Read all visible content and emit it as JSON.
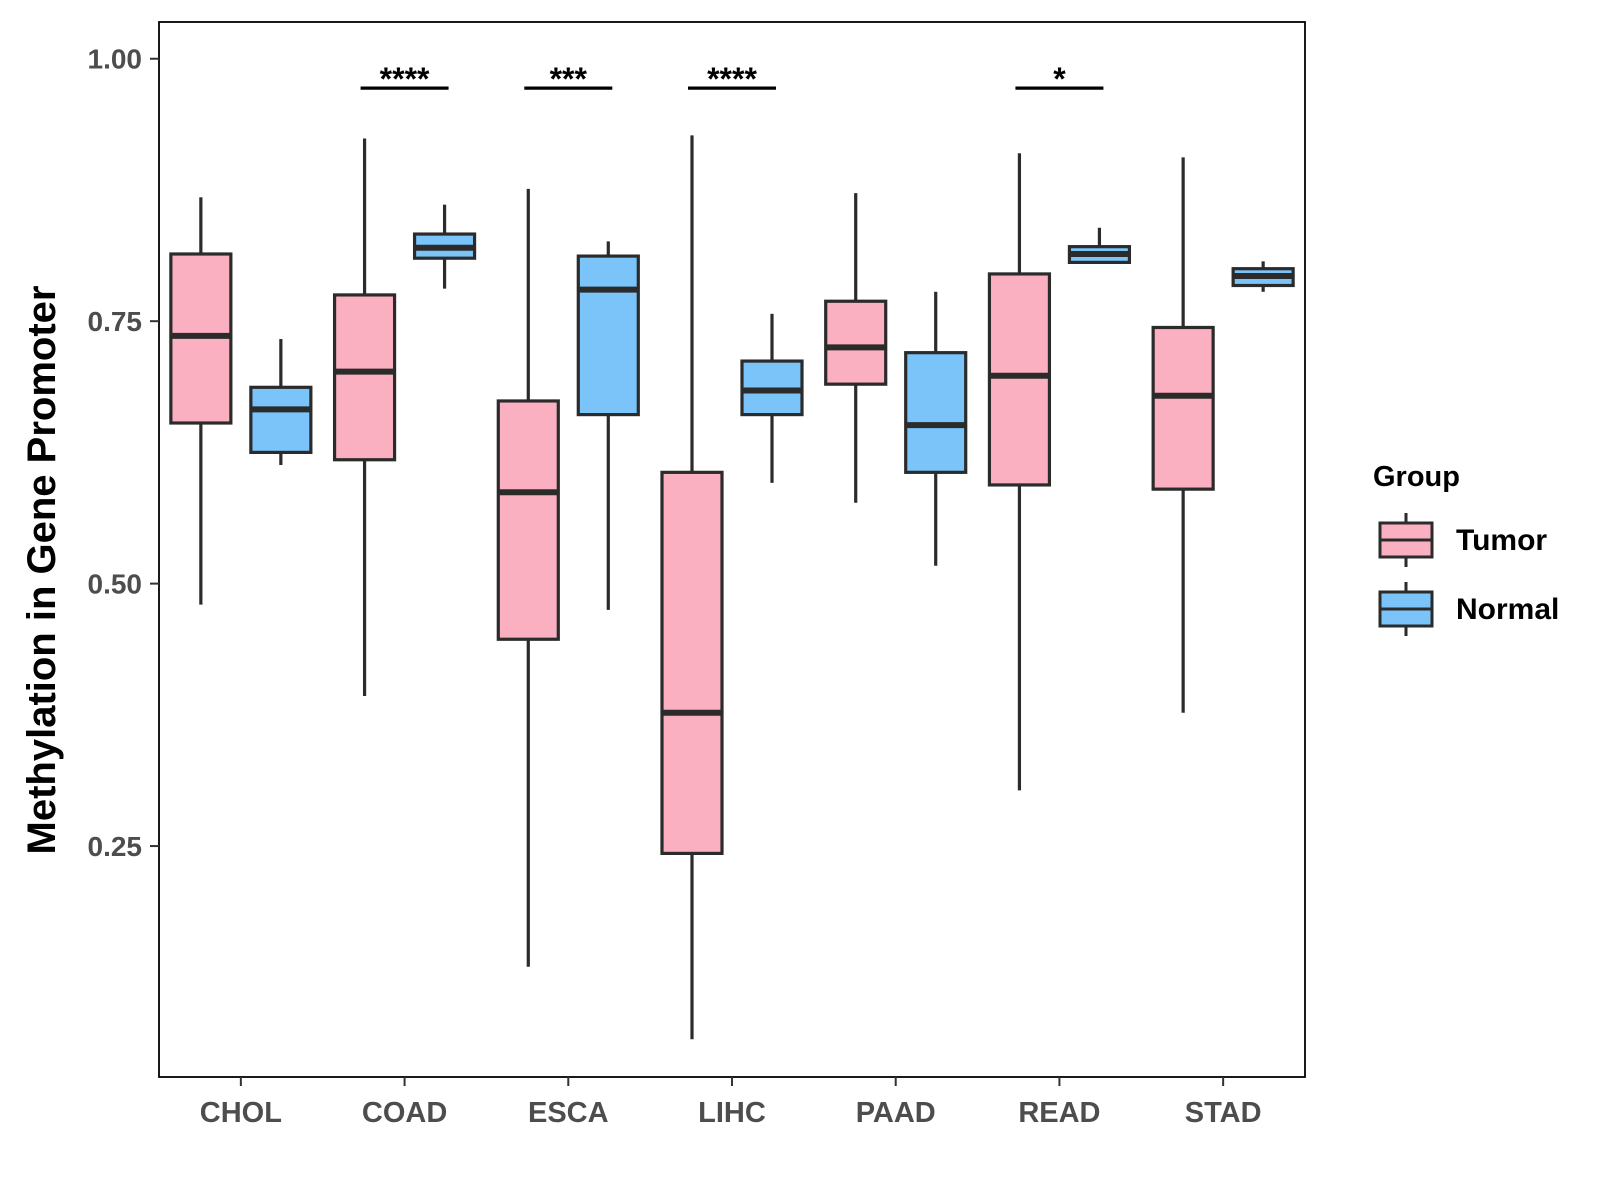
{
  "chart_data": {
    "type": "boxplot",
    "title": "",
    "xlabel": "",
    "ylabel": "Methylation in Gene Promoter",
    "ylim": [
      0.03,
      1.035
    ],
    "yticks": [
      "0.25",
      "0.50",
      "0.75",
      "1.00"
    ],
    "ytick_values": [
      0.25,
      0.5,
      0.75,
      1.0
    ],
    "grid": false,
    "categories": [
      "CHOL",
      "COAD",
      "ESCA",
      "LIHC",
      "PAAD",
      "READ",
      "STAD"
    ],
    "legend": {
      "title": "Group",
      "position": "right",
      "entries": [
        "Tumor",
        "Normal"
      ]
    },
    "series": [
      {
        "name": "Tumor",
        "color": "#FBB0C1",
        "boxes": [
          {
            "whisker_low": 0.48,
            "q1": 0.653,
            "median": 0.736,
            "q3": 0.814,
            "whisker_high": 0.868
          },
          {
            "whisker_low": 0.393,
            "q1": 0.618,
            "median": 0.702,
            "q3": 0.775,
            "whisker_high": 0.924
          },
          {
            "whisker_low": 0.135,
            "q1": 0.447,
            "median": 0.587,
            "q3": 0.674,
            "whisker_high": 0.876
          },
          {
            "whisker_low": 0.066,
            "q1": 0.243,
            "median": 0.377,
            "q3": 0.606,
            "whisker_high": 0.927
          },
          {
            "whisker_low": 0.577,
            "q1": 0.69,
            "median": 0.725,
            "q3": 0.769,
            "whisker_high": 0.872
          },
          {
            "whisker_low": 0.303,
            "q1": 0.594,
            "median": 0.698,
            "q3": 0.795,
            "whisker_high": 0.91
          },
          {
            "whisker_low": 0.377,
            "q1": 0.59,
            "median": 0.679,
            "q3": 0.744,
            "whisker_high": 0.906
          }
        ]
      },
      {
        "name": "Normal",
        "color": "#7BC4FA",
        "boxes": [
          {
            "whisker_low": 0.613,
            "q1": 0.625,
            "median": 0.666,
            "q3": 0.687,
            "whisker_high": 0.733
          },
          {
            "whisker_low": 0.781,
            "q1": 0.81,
            "median": 0.82,
            "q3": 0.833,
            "whisker_high": 0.861
          },
          {
            "whisker_low": 0.475,
            "q1": 0.661,
            "median": 0.78,
            "q3": 0.812,
            "whisker_high": 0.826
          },
          {
            "whisker_low": 0.596,
            "q1": 0.661,
            "median": 0.684,
            "q3": 0.712,
            "whisker_high": 0.757
          },
          {
            "whisker_low": 0.517,
            "q1": 0.606,
            "median": 0.651,
            "q3": 0.72,
            "whisker_high": 0.778
          },
          {
            "whisker_low": 0.805,
            "q1": 0.806,
            "median": 0.814,
            "q3": 0.821,
            "whisker_high": 0.839
          },
          {
            "whisker_low": 0.778,
            "q1": 0.784,
            "median": 0.793,
            "q3": 0.8,
            "whisker_high": 0.807
          }
        ]
      }
    ],
    "significance": [
      {
        "category": "COAD",
        "label": "****",
        "y": 0.972
      },
      {
        "category": "ESCA",
        "label": "***",
        "y": 0.972
      },
      {
        "category": "LIHC",
        "label": "****",
        "y": 0.972
      },
      {
        "category": "READ",
        "label": "*",
        "y": 0.972
      }
    ]
  },
  "colors": {
    "tumor": "#FBB0C1",
    "normal": "#7BC4FA",
    "outline": "#2b2b2b",
    "axis_text": "#4d4d4d"
  }
}
